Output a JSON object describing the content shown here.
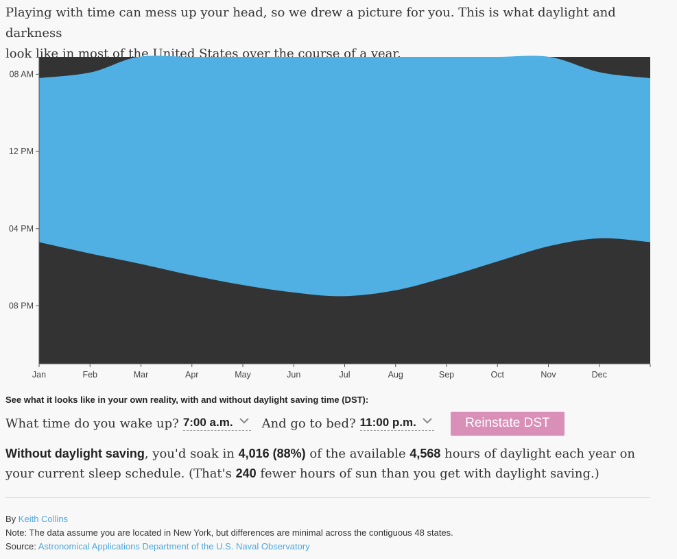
{
  "intro": {
    "line1": "Playing with time can mess up your head, so we drew a picture for you. This is what daylight and darkness",
    "line2": "look like in most of the United States over the course of a year."
  },
  "colors": {
    "daylight": "#50b0e3",
    "darkness": "#333333",
    "button": "#d98fb8",
    "link": "#4ea8dd"
  },
  "chart_data": {
    "type": "area",
    "title": "",
    "xlabel": "",
    "ylabel": "",
    "months": [
      "Jan",
      "Feb",
      "Mar",
      "Apr",
      "May",
      "Jun",
      "Jul",
      "Aug",
      "Sep",
      "Oct",
      "Nov",
      "Dec"
    ],
    "y_ticks": [
      "08 AM",
      "12 PM",
      "04 PM",
      "08 PM"
    ],
    "y_tick_hours": [
      8,
      12,
      16,
      20
    ],
    "ylim_hours": [
      7.1,
      23.0
    ],
    "y_axis_inverted": true,
    "series": [
      {
        "name": "",
        "color": "#50b0e3",
        "day_of_year": [
          1,
          32,
          60,
          91,
          121,
          152,
          182,
          213,
          244,
          274,
          305,
          335,
          365
        ],
        "sunrise_hours": [
          8.2,
          7.9,
          7.1,
          7.1,
          7.1,
          7.1,
          7.1,
          7.1,
          7.1,
          7.1,
          7.1,
          7.9,
          8.2
        ],
        "sunset_hours": [
          16.7,
          17.3,
          17.8,
          18.4,
          18.9,
          19.3,
          19.5,
          19.2,
          18.5,
          17.7,
          16.9,
          16.5,
          16.7
        ]
      }
    ],
    "grid": false
  },
  "controls": {
    "prompt": "See what it looks like in your own reality, with and without daylight saving time (DST):",
    "wake_label": "What time do you wake up?",
    "wake_value": "7:00 a.m.",
    "bed_label": "And go to bed?",
    "bed_value": "11:00 p.m.",
    "button_label": "Reinstate DST"
  },
  "result": {
    "lead": "Without daylight saving",
    "t1": ", you'd soak in ",
    "soaked": "4,016 (88%)",
    "t2": " of the available ",
    "available": "4,568",
    "t3": " hours of daylight each year on your current sleep schedule. (That's ",
    "fewer": "240",
    "t4": " fewer hours of sun than you get with daylight saving.)"
  },
  "credits": {
    "by_prefix": "By ",
    "author": "Keith Collins",
    "note": "Note: The data assume you are located in New York, but differences are minimal across the contiguous 48 states.",
    "source_prefix": "Source: ",
    "source": "Astronomical Applications Department of the U.S. Naval Observatory"
  }
}
